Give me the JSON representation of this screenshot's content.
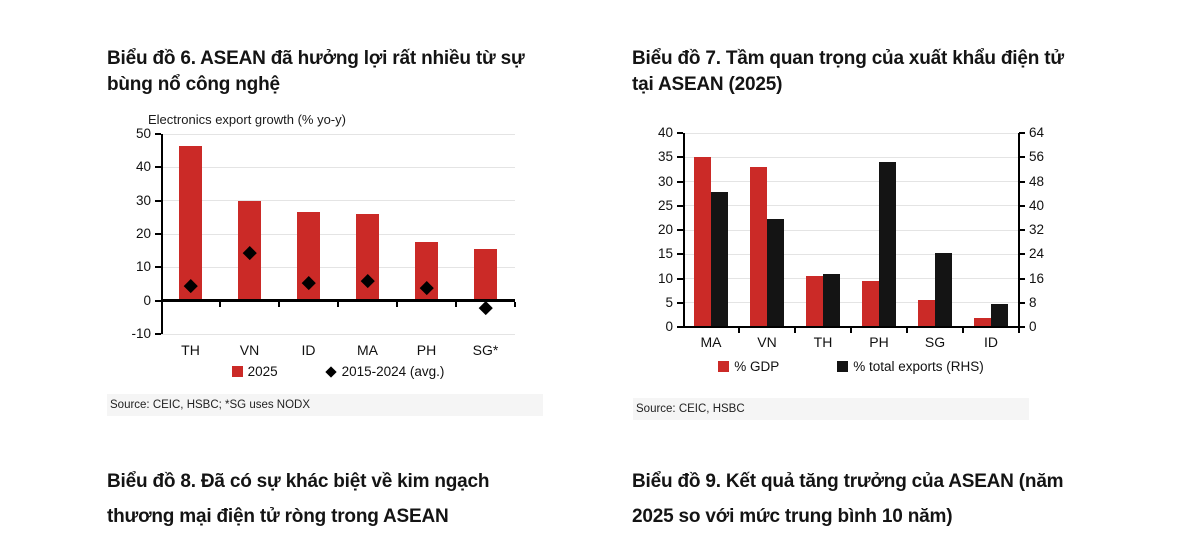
{
  "headings": {
    "chart6": [
      "Biểu đồ 6. ASEAN đã hưởng lợi rất nhiều từ sự",
      "bùng nổ công nghệ"
    ],
    "chart7": [
      "Biểu đồ 7. Tầm quan trọng của xuất khẩu điện tử",
      "tại ASEAN (2025)"
    ],
    "chart8": [
      "Biểu đồ 8. Đã có sự khác biệt về kim ngạch",
      "thương mại điện tử ròng trong ASEAN"
    ],
    "chart9": [
      "Biểu đồ 9. Kết quả tăng trưởng của ASEAN (năm",
      "2025 so với mức trung bình 10 năm)"
    ]
  },
  "colors": {
    "red": "#cb2a27",
    "black_bar": "#141414",
    "gridline": "#e4e4e4",
    "axis": "#000000"
  },
  "chart_data": [
    {
      "type": "bar",
      "title": "Electronics export growth (% yo-y)",
      "categories": [
        "TH",
        "VN",
        "ID",
        "MA",
        "PH",
        "SG*"
      ],
      "series": [
        {
          "name": "2025",
          "type": "bar",
          "color": "#cb2a27",
          "axis": "left",
          "values": [
            46.5,
            30,
            26.5,
            26,
            17.5,
            15.5
          ]
        },
        {
          "name": "2015-2024 (avg.)",
          "type": "diamond",
          "color": "#000000",
          "axis": "left",
          "values": [
            4.5,
            14.5,
            5.5,
            6,
            4,
            -2
          ]
        }
      ],
      "left_axis": {
        "min": -10,
        "max": 50,
        "ticks": [
          50,
          40,
          30,
          20,
          10,
          0,
          -10
        ]
      },
      "grid": true,
      "legend_position": "bottom",
      "source": "Source: CEIC, HSBC; *SG uses NODX"
    },
    {
      "type": "bar",
      "title": "",
      "categories": [
        "MA",
        "VN",
        "TH",
        "PH",
        "SG",
        "ID"
      ],
      "series": [
        {
          "name": "% GDP",
          "type": "bar",
          "color": "#cb2a27",
          "axis": "left",
          "values": [
            35,
            33,
            10.5,
            9.5,
            5.5,
            1.8
          ]
        },
        {
          "name": "% total exports (RHS)",
          "type": "bar",
          "color": "#141414",
          "axis": "right",
          "values": [
            44.5,
            35.5,
            17.5,
            54.5,
            24.5,
            7.5
          ]
        }
      ],
      "left_axis": {
        "min": 0,
        "max": 40,
        "ticks": [
          40,
          35,
          30,
          25,
          20,
          15,
          10,
          5,
          0
        ]
      },
      "right_axis": {
        "min": 0,
        "max": 64,
        "ticks": [
          64,
          56,
          48,
          40,
          32,
          24,
          16,
          8,
          0
        ]
      },
      "grid": true,
      "legend_position": "bottom",
      "source": "Source: CEIC, HSBC"
    }
  ]
}
